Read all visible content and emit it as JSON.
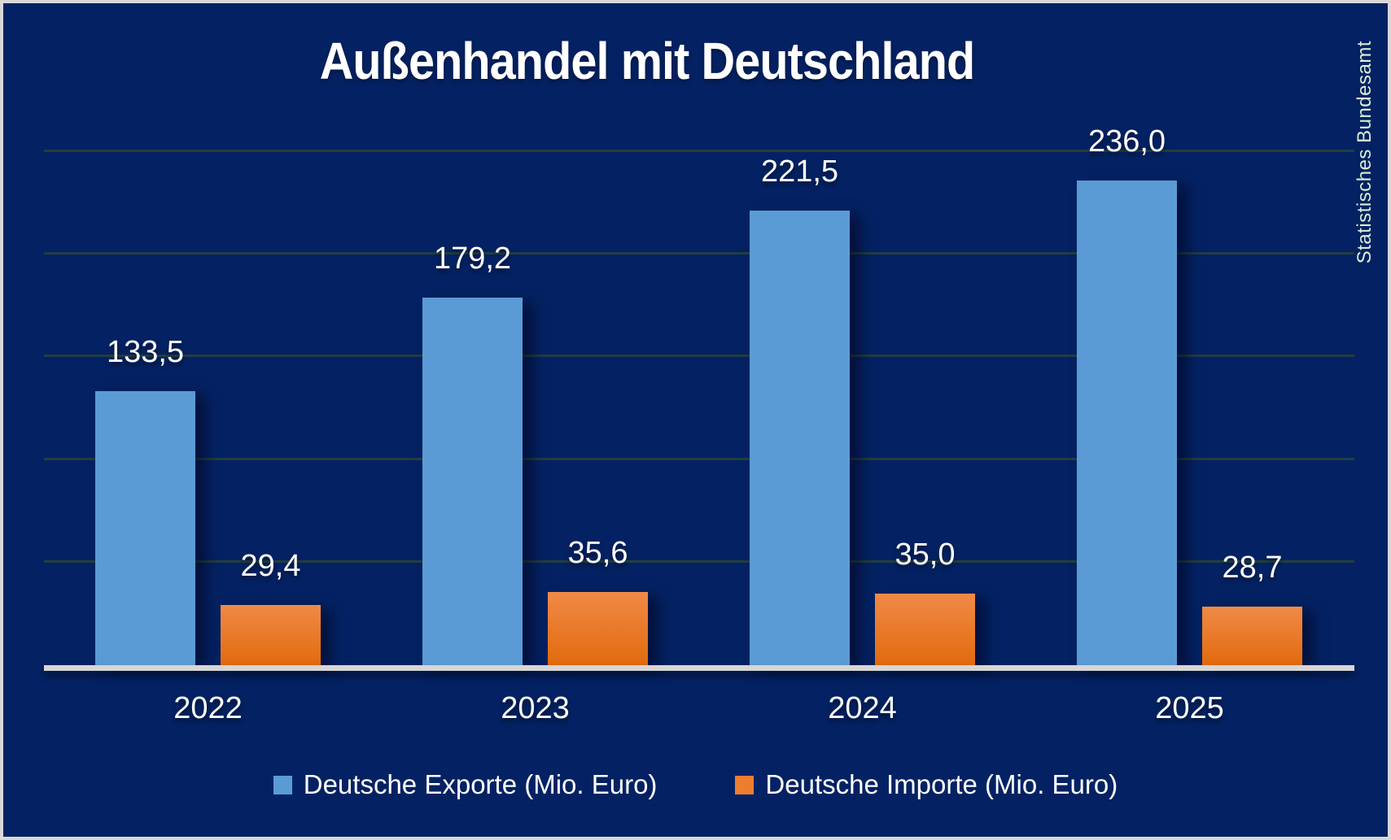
{
  "title": "Außenhandel mit Deutschland",
  "source_label": "Statistisches Bundesamt",
  "colors": {
    "background": "#042263",
    "frame_border": "#d8d8d8",
    "export_bar": "#5b9bd5",
    "import_bar_top": "#f08a47",
    "import_bar_bottom": "#e26a0e",
    "gridline": "#233e3e",
    "axis_line": "#d6d6d6",
    "label_text": "#ffffff",
    "watermark_text": "#d9efd4"
  },
  "chart_data": {
    "type": "bar",
    "title": "Außenhandel mit Deutschland",
    "categories": [
      "2022",
      "2023",
      "2024",
      "2025"
    ],
    "series": [
      {
        "name": "Deutsche Exporte (Mio. Euro)",
        "color": "#5b9bd5",
        "values": [
          133.5,
          179.2,
          221.5,
          236.0
        ],
        "labels": [
          "133,5",
          "179,2",
          "221,5",
          "236,0"
        ]
      },
      {
        "name": "Deutsche Importe (Mio. Euro)",
        "color": "#ed7d31",
        "values": [
          29.4,
          35.6,
          35.0,
          28.7
        ],
        "labels": [
          "29,4",
          "35,6",
          "35,0",
          "28,7"
        ]
      }
    ],
    "xlabel": "",
    "ylabel": "",
    "ylim": [
      0,
      277
    ],
    "gridlines": [
      50,
      100,
      150,
      200,
      250
    ],
    "grid": true,
    "y_axis_labels_visible": false,
    "data_labels_visible": true,
    "legend_position": "bottom",
    "value_format": "decimal-comma"
  },
  "legend": {
    "items": [
      {
        "label": "Deutsche Exporte (Mio. Euro)",
        "color": "#5b9bd5"
      },
      {
        "label": "Deutsche Importe (Mio. Euro)",
        "color": "#ed7d31"
      }
    ]
  }
}
